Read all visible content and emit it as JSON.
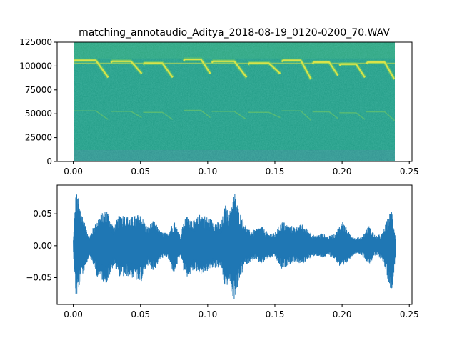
{
  "chart_data": [
    {
      "type": "heatmap",
      "title": "matching_annotaudio_Aditya_2018-08-19_0120-0200_70.WAV",
      "xlabel": "",
      "ylabel": "",
      "xlim": [
        -0.012,
        0.252
      ],
      "ylim": [
        0,
        125000
      ],
      "x_data_range": [
        0.0,
        0.24
      ],
      "xticks": [
        0.0,
        0.05,
        0.1,
        0.15,
        0.2,
        0.25
      ],
      "xtick_labels": [
        "0.00",
        "0.05",
        "0.10",
        "0.15",
        "0.20",
        "0.25"
      ],
      "yticks": [
        0,
        25000,
        50000,
        75000,
        100000,
        125000
      ],
      "ytick_labels": [
        "0",
        "25000",
        "50000",
        "75000",
        "100000",
        "125000"
      ],
      "colormap": [
        "#440154",
        "#3b528b",
        "#21918c",
        "#35b779",
        "#5ec962",
        "#fde725"
      ],
      "background_color": "#1f9a84",
      "low_band_color": "#3e8a96",
      "call_color": "#d8e34a",
      "harmonic_color": "#7fcf5a",
      "high_band_color": "#2fa57c",
      "calls": [
        {
          "start": 0.0,
          "end": 0.027,
          "freq_high": 106000,
          "freq_low": 88000
        },
        {
          "start": 0.028,
          "end": 0.052,
          "freq_high": 105000,
          "freq_low": 92000
        },
        {
          "start": 0.052,
          "end": 0.075,
          "freq_high": 103000,
          "freq_low": 88000
        },
        {
          "start": 0.082,
          "end": 0.103,
          "freq_high": 107000,
          "freq_low": 92000
        },
        {
          "start": 0.103,
          "end": 0.13,
          "freq_high": 105000,
          "freq_low": 88000
        },
        {
          "start": 0.13,
          "end": 0.155,
          "freq_high": 103000,
          "freq_low": 92000
        },
        {
          "start": 0.155,
          "end": 0.178,
          "freq_high": 106000,
          "freq_low": 86000
        },
        {
          "start": 0.178,
          "end": 0.198,
          "freq_high": 104000,
          "freq_low": 90000
        },
        {
          "start": 0.198,
          "end": 0.218,
          "freq_high": 102000,
          "freq_low": 88000
        },
        {
          "start": 0.218,
          "end": 0.24,
          "freq_high": 104000,
          "freq_low": 86000
        }
      ]
    },
    {
      "type": "line",
      "title": "",
      "xlabel": "",
      "ylabel": "",
      "xlim": [
        -0.012,
        0.252
      ],
      "ylim": [
        -0.092,
        0.095
      ],
      "xticks": [
        0.0,
        0.05,
        0.1,
        0.15,
        0.2,
        0.25
      ],
      "xtick_labels": [
        "0.00",
        "0.05",
        "0.10",
        "0.15",
        "0.20",
        "0.25"
      ],
      "yticks": [
        -0.05,
        0.0,
        0.05
      ],
      "ytick_labels": [
        "−0.05",
        "0.00",
        "0.05"
      ],
      "line_color": "#1f77b4",
      "envelope": {
        "t": [
          0.0,
          0.002,
          0.008,
          0.012,
          0.018,
          0.025,
          0.03,
          0.035,
          0.042,
          0.05,
          0.055,
          0.06,
          0.065,
          0.07,
          0.075,
          0.08,
          0.082,
          0.085,
          0.09,
          0.095,
          0.1,
          0.105,
          0.11,
          0.113,
          0.116,
          0.118,
          0.12,
          0.123,
          0.127,
          0.13,
          0.135,
          0.14,
          0.145,
          0.15,
          0.155,
          0.16,
          0.165,
          0.17,
          0.175,
          0.18,
          0.185,
          0.19,
          0.195,
          0.2,
          0.205,
          0.21,
          0.215,
          0.22,
          0.225,
          0.23,
          0.235,
          0.237,
          0.24
        ],
        "upper": [
          0.01,
          0.088,
          0.04,
          0.015,
          0.045,
          0.058,
          0.03,
          0.052,
          0.045,
          0.05,
          0.03,
          0.04,
          0.022,
          0.02,
          0.04,
          0.015,
          0.04,
          0.05,
          0.04,
          0.052,
          0.045,
          0.04,
          0.035,
          0.065,
          0.05,
          0.07,
          0.085,
          0.058,
          0.04,
          0.025,
          0.025,
          0.032,
          0.02,
          0.02,
          0.04,
          0.033,
          0.03,
          0.034,
          0.025,
          0.015,
          0.02,
          0.015,
          0.02,
          0.04,
          0.022,
          0.012,
          0.015,
          0.032,
          0.015,
          0.02,
          0.05,
          0.058,
          0.01
        ],
        "lower": [
          -0.01,
          -0.085,
          -0.04,
          -0.015,
          -0.05,
          -0.06,
          -0.03,
          -0.05,
          -0.048,
          -0.06,
          -0.03,
          -0.04,
          -0.02,
          -0.018,
          -0.045,
          -0.014,
          -0.04,
          -0.05,
          -0.038,
          -0.045,
          -0.04,
          -0.035,
          -0.035,
          -0.07,
          -0.055,
          -0.08,
          -0.085,
          -0.06,
          -0.035,
          -0.028,
          -0.022,
          -0.03,
          -0.02,
          -0.018,
          -0.038,
          -0.03,
          -0.025,
          -0.03,
          -0.022,
          -0.015,
          -0.02,
          -0.015,
          -0.022,
          -0.04,
          -0.022,
          -0.012,
          -0.015,
          -0.03,
          -0.015,
          -0.022,
          -0.06,
          -0.075,
          -0.01
        ]
      }
    }
  ]
}
